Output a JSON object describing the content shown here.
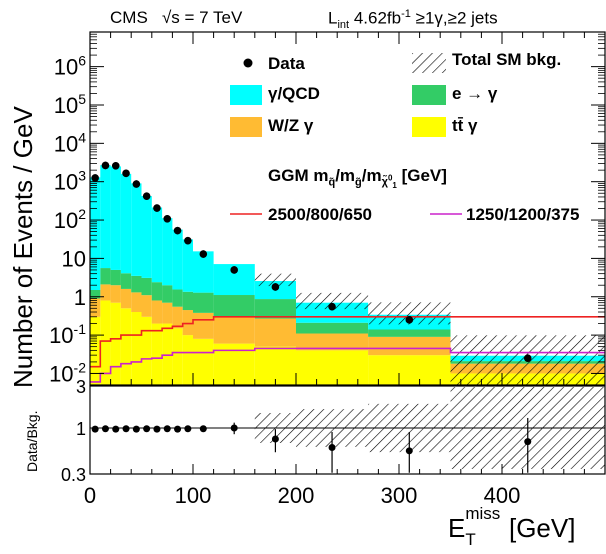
{
  "header": {
    "experiment": "CMS",
    "energy": "√s = 7 TeV",
    "lumi": "L",
    "lumi_sub": "int",
    "lumi_value": "4.62fb",
    "lumi_sup": "-1",
    "selection": "≥1γ,≥2 jets"
  },
  "axes": {
    "ylabel": "Number of Events / GeV",
    "ratio_ylabel": "Data/Bkg.",
    "xlabel_main": "E",
    "xlabel_sub": "T",
    "xlabel_sup": "miss",
    "xlabel_unit": "[GeV]"
  },
  "legend": {
    "data": "Data",
    "total_sm": "Total SM bkg.",
    "qcd": "γ/QCD",
    "egamma": "e → γ",
    "wz": "W/Z γ",
    "ttbar": "tt̄ γ",
    "ggm_title": "GGM m",
    "ggm_units": "[GeV]",
    "sig1": "2500/800/650",
    "sig2": "1250/1200/375"
  },
  "colors": {
    "qcd": "#00ffff",
    "egamma": "#33cc66",
    "wz": "#ffbb33",
    "ttbar": "#ffff00",
    "sig1": "#ee2222",
    "sig2": "#cc22cc"
  },
  "chart_data": {
    "type": "bar",
    "title": "",
    "xlabel": "E_T^miss [GeV]",
    "ylabel": "Number of Events / GeV",
    "xlim": [
      0,
      500
    ],
    "ylim": [
      0.005,
      8000000
    ],
    "yscale": "log",
    "x_ticks": [
      "0",
      "100",
      "200",
      "300",
      "400"
    ],
    "y_ticks": [
      "10^-2",
      "10^-1",
      "1",
      "10",
      "10^2",
      "10^3",
      "10^4",
      "10^5",
      "10^6"
    ],
    "bin_edges": [
      0,
      10,
      20,
      30,
      40,
      50,
      60,
      70,
      80,
      90,
      100,
      120,
      160,
      200,
      270,
      350,
      500
    ],
    "stack": [
      {
        "name": "tt̄ γ",
        "values": [
          0.3,
          0.8,
          0.7,
          0.5,
          0.4,
          0.3,
          0.2,
          0.2,
          0.15,
          0.1,
          0.08,
          0.06,
          0.05,
          0.04,
          0.03,
          0.01
        ]
      },
      {
        "name": "W/Z γ",
        "values": [
          0.6,
          1.3,
          1.3,
          1.1,
          0.9,
          0.8,
          0.6,
          0.5,
          0.4,
          0.35,
          0.3,
          0.25,
          0.22,
          0.07,
          0.06,
          0.008
        ]
      },
      {
        "name": "e → γ",
        "values": [
          0.6,
          3.5,
          3.0,
          2.5,
          2.2,
          2.0,
          1.6,
          1.3,
          1.0,
          0.9,
          0.9,
          0.8,
          0.6,
          0.1,
          0.05,
          0.003
        ]
      },
      {
        "name": "γ/QCD",
        "values": [
          1300,
          2700,
          2500,
          1600,
          900,
          420,
          210,
          110,
          55,
          30,
          14,
          6,
          1.7,
          0.49,
          0.2,
          0.008
        ]
      }
    ],
    "total_sm": [
      1300,
      2700,
      2500,
      1600,
      900,
      420,
      210,
      110,
      55,
      30,
      15,
      7,
      2.5,
      0.7,
      0.34,
      0.029
    ],
    "data_points": {
      "x": [
        5,
        15,
        25,
        35,
        45,
        55,
        65,
        75,
        85,
        95,
        110,
        140,
        180,
        235,
        310,
        425
      ],
      "y": [
        1250,
        2650,
        2600,
        1650,
        870,
        420,
        205,
        108,
        53,
        29,
        13,
        5,
        1.8,
        0.55,
        0.25,
        0.025
      ]
    },
    "signals": [
      {
        "name": "2500/800/650",
        "values": [
          0.015,
          0.07,
          0.08,
          0.1,
          0.1,
          0.13,
          0.13,
          0.15,
          0.17,
          0.2,
          0.25,
          0.3,
          0.3,
          0.3,
          0.3,
          0.3
        ]
      },
      {
        "name": "1250/1200/375",
        "values": [
          0.006,
          0.01,
          0.015,
          0.018,
          0.02,
          0.024,
          0.025,
          0.03,
          0.035,
          0.035,
          0.035,
          0.04,
          0.045,
          0.045,
          0.045,
          0.035
        ]
      }
    ],
    "ratio": {
      "ylabel": "Data/Bkg.",
      "ylim": [
        0.3,
        3
      ],
      "yscale": "log",
      "y_ticks": [
        "0.3",
        "1",
        "3"
      ],
      "x": [
        5,
        15,
        25,
        35,
        45,
        55,
        65,
        75,
        85,
        95,
        110,
        140,
        180,
        235,
        310,
        425
      ],
      "values": [
        0.97,
        0.98,
        0.97,
        0.98,
        0.97,
        0.98,
        0.97,
        0.98,
        0.97,
        0.98,
        0.98,
        1.0,
        0.75,
        0.6,
        0.55,
        0.7
      ],
      "errors": [
        0.02,
        0.02,
        0.02,
        0.02,
        0.02,
        0.03,
        0.03,
        0.04,
        0.05,
        0.06,
        0.07,
        0.15,
        0.22,
        0.3,
        0.35,
        0.6
      ],
      "syst_band": [
        0.02,
        0.02,
        0.02,
        0.02,
        0.02,
        0.02,
        0.02,
        0.03,
        0.03,
        0.04,
        0.05,
        0.08,
        0.3,
        0.4,
        0.55,
        1.2
      ]
    }
  }
}
